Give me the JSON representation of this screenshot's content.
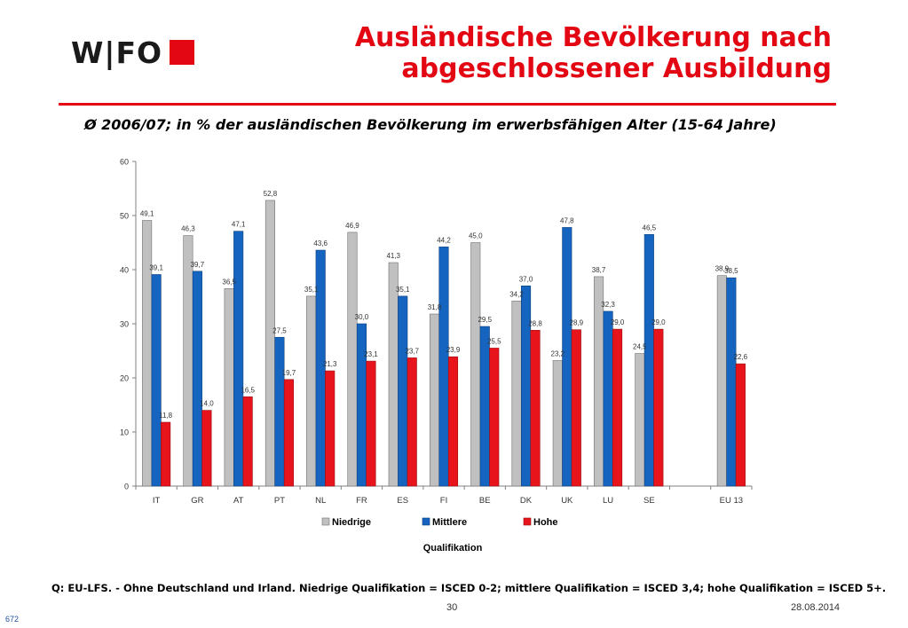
{
  "logo": {
    "text": "W|FO"
  },
  "title": {
    "line1": "Ausländische Bevölkerung nach",
    "line2": "abgeschlossener Ausbildung"
  },
  "subtitle": "Ø 2006/07; in % der ausländischen Bevölkerung im erwerbsfähigen Alter (15-64 Jahre)",
  "footer": {
    "note": "Q: EU-LFS. - Ohne Deutschland und Irland. Niedrige Qualifikation = ISCED 0-2; mittlere Qualifikation = ISCED 3,4; hohe Qualifikation = ISCED 5+.",
    "page": "30",
    "date": "28.08.2014",
    "slide_id": "672"
  },
  "colors": {
    "accent": "#e30613",
    "niedrige": "#c0c0c0",
    "mittlere": "#1565c0",
    "hohe": "#e8141c"
  },
  "chart_data": {
    "type": "bar",
    "categories": [
      "IT",
      "GR",
      "AT",
      "PT",
      "NL",
      "FR",
      "ES",
      "FI",
      "BE",
      "DK",
      "UK",
      "LU",
      "SE",
      "",
      "EU 13"
    ],
    "series": [
      {
        "name": "Niedrige",
        "values": [
          49.1,
          46.3,
          36.5,
          52.8,
          35.1,
          46.9,
          41.3,
          31.8,
          45.0,
          34.2,
          23.2,
          38.7,
          24.5,
          null,
          38.9
        ]
      },
      {
        "name": "Mittlere",
        "values": [
          39.1,
          39.7,
          47.1,
          27.5,
          43.6,
          30.0,
          35.1,
          44.2,
          29.5,
          37.0,
          47.8,
          32.3,
          46.5,
          null,
          38.5
        ]
      },
      {
        "name": "Hohe",
        "values": [
          11.8,
          14.0,
          16.5,
          19.7,
          21.3,
          23.1,
          23.7,
          23.9,
          25.5,
          28.8,
          28.9,
          29.0,
          29.0,
          null,
          22.6
        ]
      }
    ],
    "value_labels": [
      [
        "49,1",
        "46,3",
        "36,5",
        "52,8",
        "35,1",
        "46,9",
        "41,3",
        "31,8",
        "45,0",
        "34,2",
        "23,2",
        "38,7",
        "24,5",
        "",
        "38,9"
      ],
      [
        "39,1",
        "39,7",
        "47,1",
        "27,5",
        "43,6",
        "30,0",
        "35,1",
        "44,2",
        "29,5",
        "37,0",
        "47,8",
        "32,3",
        "46,5",
        "",
        "38,5"
      ],
      [
        "11,8",
        "14,0",
        "16,5",
        "19,7",
        "21,3",
        "23,1",
        "23,7",
        "23,9",
        "25,5",
        "28,8",
        "28,9",
        "29,0",
        "29,0",
        "",
        "22,6"
      ]
    ],
    "xlabel": "Qualifikation",
    "ylabel": "",
    "ylim": [
      0,
      60
    ],
    "yticks": [
      0,
      10,
      20,
      30,
      40,
      50,
      60
    ],
    "grid": false,
    "legend": "bottom"
  }
}
